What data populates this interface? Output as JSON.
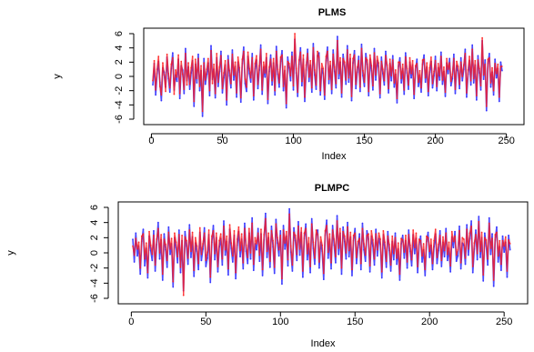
{
  "chart_data": [
    {
      "type": "line",
      "title": "PLMS",
      "xlabel": "Index",
      "ylabel": "y",
      "xlim": [
        0,
        256
      ],
      "ylim": [
        -6,
        6
      ],
      "xticks": [
        0,
        50,
        100,
        150,
        200,
        250
      ],
      "yticks": [
        -6,
        -4,
        -2,
        0,
        2,
        4,
        6
      ],
      "yticklabels": [
        "-6",
        "-4",
        "-2",
        "0",
        "2",
        "4",
        "6"
      ],
      "grid": false,
      "n_points": 256,
      "series": [
        {
          "color": "#2b2bff",
          "values": [
            -1.2,
            1.8,
            -2.6,
            0.4,
            2.1,
            -0.8,
            -3.4,
            1.2,
            0.6,
            -1.5,
            2.7,
            -0.3,
            -2.2,
            1.1,
            3.3,
            -1.9,
            0.2,
            -0.7,
            2.4,
            -3.1,
            1.5,
            0.9,
            -2.4,
            3.9,
            -0.6,
            1.3,
            -1.8,
            0.5,
            2.2,
            -4.2,
            1.7,
            -0.9,
            3.1,
            -2.0,
            0.8,
            -5.6,
            2.5,
            -1.1,
            0.3,
            1.9,
            -2.7,
            4.3,
            -0.4,
            1.0,
            -3.0,
            2.6,
            -1.4,
            0.7,
            3.5,
            -2.3,
            -0.2,
            1.6,
            -4.0,
            2.9,
            0.1,
            -1.6,
            3.7,
            -0.5,
            1.4,
            -2.9,
            2.0,
            0.6,
            -3.6,
            1.8,
            4.1,
            -1.0,
            -2.1,
            2.8,
            0.4,
            -0.8,
            3.2,
            -3.3,
            1.1,
            2.3,
            -1.7,
            0.9,
            4.4,
            -2.5,
            1.3,
            -0.1,
            2.6,
            -3.8,
            0.7,
            3.0,
            -1.2,
            1.9,
            -2.6,
            4.2,
            0.3,
            -1.5,
            2.1,
            3.6,
            -2.0,
            0.8,
            -4.4,
            2.7,
            1.2,
            -0.6,
            3.4,
            -1.9,
            5.2,
            0.5,
            -2.8,
            1.7,
            4.0,
            -1.3,
            2.4,
            -3.5,
            0.9,
            3.8,
            -0.7,
            1.6,
            -2.2,
            4.6,
            0.2,
            -1.8,
            2.9,
            3.3,
            -2.6,
            1.1,
            0.4,
            -3.2,
            2.2,
            4.1,
            -1.0,
            1.5,
            -2.4,
            3.7,
            0.7,
            -1.6,
            5.6,
            -0.3,
            2.0,
            -2.9,
            3.1,
            1.4,
            -1.1,
            4.3,
            -0.8,
            2.5,
            -3.4,
            1.9,
            3.6,
            -1.7,
            0.6,
            2.8,
            -2.1,
            4.5,
            0.1,
            -1.4,
            3.2,
            1.7,
            -2.7,
            2.4,
            0.8,
            -1.9,
            3.9,
            -0.5,
            2.2,
            1.3,
            -3.0,
            2.7,
            0.4,
            -1.2,
            3.5,
            1.0,
            -2.3,
            1.8,
            -0.6,
            2.9,
            -1.5,
            0.3,
            -3.7,
            1.4,
            2.6,
            -0.9,
            1.1,
            -2.5,
            3.3,
            0.5,
            -1.8,
            2.0,
            -0.2,
            1.6,
            -3.1,
            0.9,
            2.4,
            -1.4,
            0.2,
            -2.2,
            1.7,
            3.0,
            -0.8,
            1.3,
            -2.7,
            0.6,
            2.1,
            -1.6,
            0.1,
            2.8,
            -2.0,
            1.2,
            -0.5,
            3.4,
            -1.1,
            0.7,
            -2.8,
            1.9,
            0.4,
            2.5,
            -1.3,
            -0.3,
            3.1,
            -2.4,
            1.5,
            0.8,
            -1.7,
            2.6,
            -0.6,
            1.0,
            3.8,
            -2.9,
            0.3,
            2.2,
            -1.2,
            4.4,
            -0.9,
            1.6,
            -3.3,
            2.9,
            0.5,
            -1.9,
            5.0,
            -0.4,
            2.3,
            -4.8,
            1.8,
            3.2,
            -1.5,
            0.6,
            -2.6,
            2.4,
            -0.2,
            1.1,
            -3.5,
            2.0,
            0.8
          ]
        },
        {
          "color": "#ff1a1a",
          "values": [
            -0.6,
            2.2,
            -1.9,
            1.0,
            2.8,
            -1.4,
            -2.6,
            1.9,
            0.2,
            -2.1,
            3.1,
            0.4,
            -1.6,
            1.7,
            2.6,
            -2.5,
            0.9,
            -0.1,
            3.0,
            -2.4,
            2.1,
            0.3,
            -1.8,
            3.2,
            -1.2,
            1.9,
            -1.1,
            1.2,
            2.8,
            -3.5,
            2.4,
            -0.3,
            2.5,
            -1.4,
            1.5,
            -4.9,
            1.9,
            -0.5,
            1.0,
            2.5,
            -2.0,
            3.6,
            -1.0,
            1.7,
            -2.4,
            3.2,
            -0.8,
            1.3,
            2.9,
            -1.7,
            0.5,
            2.2,
            -3.3,
            2.3,
            0.8,
            -1.0,
            3.1,
            0.2,
            2.0,
            -2.3,
            2.7,
            1.2,
            -3.0,
            2.4,
            3.5,
            -0.4,
            -1.5,
            3.4,
            1.1,
            -0.2,
            2.6,
            -2.7,
            1.8,
            2.9,
            -1.1,
            1.5,
            3.8,
            -1.9,
            2.0,
            0.5,
            3.2,
            -3.2,
            1.3,
            2.4,
            -0.6,
            2.5,
            -2.0,
            3.5,
            1.0,
            -0.9,
            2.7,
            3.0,
            -1.4,
            1.4,
            -3.8,
            2.1,
            1.8,
            0.1,
            2.8,
            -1.3,
            6.0,
            1.1,
            -2.2,
            2.3,
            3.4,
            -0.7,
            3.0,
            -2.9,
            1.6,
            3.2,
            -0.1,
            2.2,
            -1.6,
            4.0,
            0.9,
            -1.2,
            3.5,
            2.7,
            -2.0,
            1.8,
            1.1,
            -2.6,
            2.8,
            3.5,
            -0.4,
            2.1,
            -1.8,
            3.1,
            1.3,
            -1.0,
            5.0,
            0.4,
            2.6,
            -2.3,
            2.5,
            2.0,
            -0.5,
            3.7,
            -0.2,
            3.1,
            -2.8,
            2.5,
            3.0,
            -1.1,
            1.3,
            2.2,
            -1.5,
            3.9,
            0.8,
            -0.8,
            2.6,
            2.3,
            -2.1,
            3.0,
            1.5,
            -1.3,
            3.3,
            0.2,
            2.8,
            1.9,
            -2.4,
            2.1,
            1.0,
            -0.6,
            2.9,
            1.6,
            -1.7,
            2.4,
            0.1,
            2.3,
            -0.9,
            0.9,
            -3.1,
            2.0,
            2.0,
            -0.3,
            1.7,
            -1.9,
            2.7,
            1.1,
            -1.2,
            2.6,
            0.4,
            2.2,
            -2.5,
            1.5,
            1.8,
            -0.8,
            0.8,
            -1.6,
            2.3,
            2.4,
            -0.2,
            1.9,
            -2.1,
            1.2,
            2.7,
            -1.0,
            0.7,
            2.2,
            -1.4,
            1.8,
            0.1,
            2.8,
            -0.5,
            1.3,
            -2.2,
            2.5,
            1.0,
            1.9,
            -0.7,
            0.3,
            2.5,
            -1.8,
            2.1,
            1.4,
            -1.1,
            2.0,
            0.0,
            1.6,
            3.2,
            -2.3,
            0.9,
            2.8,
            -0.6,
            3.8,
            -0.3,
            2.2,
            -2.7,
            2.3,
            1.1,
            -1.3,
            5.4,
            0.2,
            1.7,
            -4.2,
            2.4,
            2.6,
            -0.9,
            1.2,
            -2.0,
            1.8,
            0.4,
            1.7,
            -2.9,
            1.4,
            1.4
          ]
        }
      ]
    },
    {
      "type": "line",
      "title": "PLMPC",
      "xlabel": "Index",
      "ylabel": "y",
      "xlim": [
        0,
        256
      ],
      "ylim": [
        -6,
        6
      ],
      "xticks": [
        0,
        50,
        100,
        150,
        200,
        250
      ],
      "yticks": [
        -6,
        -4,
        -2,
        0,
        2,
        4,
        6
      ],
      "yticklabels": [
        "-6",
        "-4",
        "-2",
        "0",
        "2",
        "4",
        "6"
      ],
      "grid": false,
      "n_points": 256,
      "series": [
        {
          "color": "#2b2bff",
          "values": [
            1.8,
            -1.2,
            2.6,
            -0.4,
            0.9,
            -2.8,
            1.5,
            3.1,
            -1.7,
            0.6,
            -3.3,
            2.2,
            0.3,
            -1.0,
            2.9,
            -2.4,
            1.1,
            4.0,
            -0.8,
            1.7,
            -3.6,
            2.5,
            0.4,
            -1.9,
            3.4,
            -0.2,
            1.2,
            -4.5,
            2.0,
            0.7,
            -1.3,
            3.0,
            -2.6,
            1.6,
            -5.0,
            2.8,
            0.9,
            -1.5,
            3.7,
            -0.6,
            2.1,
            -3.1,
            1.3,
            0.2,
            -2.2,
            2.7,
            -1.0,
            0.5,
            3.3,
            -1.8,
            -0.7,
            2.4,
            -3.9,
            1.4,
            3.6,
            -0.9,
            2.0,
            -2.5,
            0.8,
            1.9,
            -1.6,
            4.2,
            -0.3,
            1.5,
            -2.9,
            3.1,
            0.6,
            -1.2,
            2.3,
            -3.4,
            1.0,
            2.8,
            -0.5,
            1.8,
            -2.1,
            3.9,
            0.2,
            -1.4,
            2.6,
            -0.8,
            4.6,
            -2.3,
            1.2,
            0.4,
            3.2,
            -1.1,
            2.5,
            -3.0,
            1.7,
            5.2,
            -0.6,
            2.0,
            -1.9,
            3.5,
            0.8,
            -2.7,
            4.4,
            1.3,
            -0.4,
            2.9,
            -4.1,
            3.6,
            0.5,
            2.2,
            -1.7,
            5.8,
            0.1,
            -2.4,
            3.3,
            1.6,
            -1.0,
            4.1,
            -0.3,
            2.7,
            -3.2,
            1.9,
            3.8,
            -0.9,
            1.2,
            -2.6,
            4.5,
            0.6,
            -1.5,
            2.4,
            3.0,
            -2.0,
            1.4,
            0.2,
            -3.5,
            2.3,
            4.3,
            -0.7,
            1.8,
            -2.1,
            3.6,
            1.0,
            -1.3,
            4.9,
            -0.2,
            2.6,
            -2.8,
            3.4,
            1.5,
            -0.8,
            4.0,
            -0.5,
            2.1,
            -3.0,
            1.6,
            3.2,
            -1.4,
            0.7,
            2.5,
            -2.2,
            3.9,
            0.4,
            -1.1,
            2.9,
            1.8,
            -2.5,
            2.2,
            0.9,
            -1.6,
            3.1,
            -0.4,
            1.9,
            1.1,
            -3.3,
            2.4,
            0.6,
            -1.9,
            2.8,
            0.3,
            -2.4,
            1.5,
            -0.9,
            2.6,
            -1.5,
            0.5,
            -3.6,
            1.2,
            2.3,
            -0.7,
            1.6,
            -2.0,
            3.0,
            0.2,
            -1.7,
            2.4,
            -0.1,
            1.9,
            -2.6,
            1.1,
            2.2,
            -1.2,
            0.4,
            -3.0,
            1.5,
            2.7,
            -0.6,
            1.0,
            -2.2,
            0.8,
            2.5,
            -1.4,
            0.3,
            2.9,
            -1.8,
            1.4,
            -0.5,
            3.2,
            -1.0,
            0.6,
            -2.5,
            2.1,
            0.7,
            2.8,
            -1.1,
            -0.4,
            3.5,
            -2.1,
            1.3,
            1.0,
            -1.5,
            3.7,
            -0.3,
            1.9,
            4.2,
            -2.6,
            0.5,
            3.0,
            -0.9,
            4.8,
            -0.6,
            2.0,
            -3.7,
            2.6,
            0.9,
            -1.6,
            4.6,
            -0.2,
            2.5,
            -4.4,
            1.7,
            3.4,
            -1.2,
            0.8,
            -2.3,
            2.2,
            0.1,
            1.4,
            -3.2,
            2.3,
            0.4
          ]
        },
        {
          "color": "#ff1a1a",
          "values": [
            0.9,
            -0.3,
            1.9,
            0.5,
            1.4,
            -2.0,
            2.2,
            2.5,
            -0.8,
            1.3,
            -2.6,
            2.8,
            1.0,
            -0.2,
            2.3,
            -1.6,
            1.8,
            3.2,
            0.0,
            2.4,
            -2.8,
            1.8,
            1.1,
            -1.0,
            2.7,
            0.5,
            1.9,
            -3.8,
            2.6,
            1.4,
            -0.5,
            2.4,
            -1.9,
            2.3,
            -5.6,
            2.1,
            1.6,
            -0.7,
            3.0,
            0.2,
            2.7,
            -2.3,
            2.0,
            0.9,
            -1.4,
            3.3,
            -0.2,
            1.2,
            2.6,
            -1.0,
            0.1,
            3.0,
            -3.2,
            2.2,
            2.9,
            -0.1,
            2.6,
            -1.8,
            1.6,
            2.5,
            -0.8,
            3.5,
            0.4,
            2.2,
            -2.1,
            3.7,
            1.3,
            -0.4,
            2.9,
            -2.6,
            1.8,
            3.4,
            0.3,
            2.5,
            -1.3,
            3.2,
            1.0,
            -0.6,
            3.2,
            0.0,
            3.9,
            -1.5,
            2.0,
            1.2,
            2.6,
            -0.3,
            3.1,
            -2.2,
            2.4,
            4.5,
            0.2,
            2.6,
            -1.1,
            2.9,
            1.6,
            -1.9,
            3.8,
            2.0,
            0.4,
            2.3,
            -3.4,
            3.0,
            1.3,
            2.8,
            -0.9,
            5.1,
            0.9,
            -1.6,
            2.7,
            2.3,
            -0.2,
            3.5,
            0.5,
            3.3,
            -2.4,
            2.6,
            3.2,
            -0.1,
            2.0,
            -1.8,
            3.8,
            1.4,
            -0.7,
            3.0,
            2.4,
            -1.2,
            2.1,
            1.0,
            -2.7,
            2.9,
            3.6,
            0.1,
            2.5,
            -1.3,
            3.0,
            1.8,
            -0.5,
            4.2,
            0.6,
            3.2,
            -2.0,
            2.8,
            2.2,
            0.0,
            3.4,
            0.3,
            2.7,
            -2.2,
            2.3,
            2.6,
            -0.6,
            1.5,
            1.9,
            -1.4,
            3.2,
            1.2,
            -0.3,
            2.3,
            2.5,
            -1.7,
            2.9,
            1.7,
            -0.8,
            2.5,
            0.4,
            2.6,
            1.8,
            -2.5,
            2.9,
            1.4,
            -1.1,
            2.2,
            1.1,
            -1.6,
            2.2,
            -0.1,
            2.0,
            -0.7,
            1.3,
            -2.8,
            1.9,
            1.7,
            0.1,
            2.3,
            -1.2,
            2.4,
            1.0,
            -0.9,
            3.0,
            0.7,
            2.6,
            -1.8,
            1.8,
            1.6,
            -0.4,
            1.2,
            -2.2,
            2.2,
            2.0,
            0.2,
            1.8,
            -1.4,
            1.6,
            3.1,
            -0.6,
            1.1,
            2.3,
            -1.0,
            2.1,
            0.3,
            2.6,
            -0.2,
            1.4,
            -1.7,
            2.8,
            1.5,
            2.2,
            -0.3,
            0.4,
            2.9,
            -1.3,
            2.0,
            1.8,
            -0.7,
            3.1,
            0.5,
            2.6,
            3.5,
            -1.8,
            1.3,
            2.4,
            -0.1,
            4.1,
            0.2,
            2.7,
            -2.9,
            2.0,
            1.7,
            -0.8,
            3.9,
            0.6,
            1.9,
            -3.6,
            2.4,
            2.7,
            -0.4,
            1.6,
            -1.5,
            1.6,
            0.9,
            2.1,
            -2.4,
            1.7,
            1.2
          ]
        }
      ]
    }
  ]
}
